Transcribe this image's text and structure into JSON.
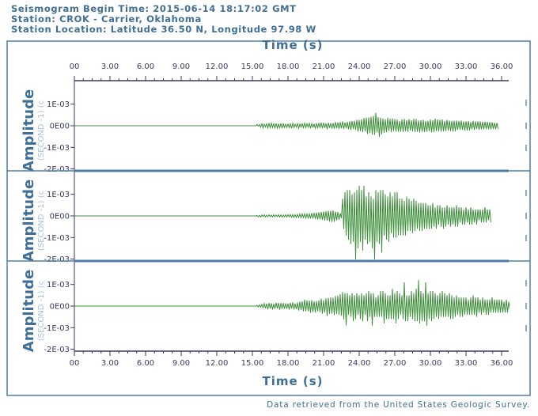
{
  "header": {
    "begin_time": "Seismogram Begin Time: 2015-06-14 18:17:02 GMT",
    "station": "Station: CROK - Carrier, Oklahoma",
    "location": "Station Location: Latitude 36.50 N, Longitude 97.98 W"
  },
  "footer": {
    "credit": "Data retrieved from the United States Geologic Survey."
  },
  "colors": {
    "trace": "#3d8f3a",
    "axis": "#3a3a66",
    "label": "#3f6f97",
    "separator": "#4f7fa8"
  },
  "chart_data": {
    "type": "line",
    "xlabel": "Time (s)",
    "ylabel": "Amplitude",
    "ylabel_units": "(SECOND -1) (c",
    "xlim": [
      0,
      36.6
    ],
    "x_ticks": [
      "00",
      "3.00",
      "6.00",
      "9.00",
      "12.00",
      "15.00",
      "18.00",
      "21.00",
      "24.00",
      "27.00",
      "30.00",
      "33.00",
      "36.00"
    ],
    "ylim": [
      0.002,
      -0.0021
    ],
    "y_ticks": [
      "1E-03",
      "0E00",
      "-1E-03",
      "-2E-03"
    ],
    "sample_interval_s": 0.1,
    "series": [
      {
        "values": [
          0,
          0,
          0,
          0,
          0,
          0,
          0,
          0,
          0,
          0,
          0,
          0,
          0,
          0,
          0,
          0,
          0,
          0,
          0,
          0,
          0,
          0,
          0,
          0,
          0,
          0,
          0,
          0,
          0,
          0,
          0,
          0,
          0,
          0,
          0,
          0,
          0,
          0,
          0,
          0,
          0,
          0,
          0,
          0,
          0,
          0,
          0,
          0,
          0,
          0,
          0,
          0,
          0,
          0,
          0,
          0,
          0,
          0,
          0,
          0,
          0,
          0,
          0,
          0,
          0,
          0,
          0,
          0,
          0,
          0,
          0,
          0,
          0,
          0,
          0,
          0,
          0,
          0,
          0,
          0,
          0,
          0,
          0,
          0,
          0,
          0,
          0,
          0,
          0,
          0,
          0,
          0,
          0,
          0,
          0,
          0,
          0,
          0,
          0,
          0,
          0,
          0,
          0,
          0,
          0,
          0,
          0,
          0,
          0,
          0,
          0,
          0,
          0,
          0,
          0,
          0,
          0,
          0,
          0,
          0,
          0,
          0,
          0,
          0,
          0,
          0,
          0,
          0,
          0,
          0,
          0,
          0,
          0,
          0,
          0,
          0,
          0,
          0,
          0,
          0,
          0,
          0,
          0,
          0,
          0,
          0,
          0,
          0,
          0,
          0,
          0,
          0,
          0,
          0,
          6e-05,
          -2e-05,
          6e-05,
          -7e-05,
          9e-05,
          -0.0001,
          7e-05,
          -5e-05,
          9e-05,
          -0.00011,
          0.0001,
          -9e-05,
          0.00012,
          -8e-05,
          9e-05,
          -0.0001,
          0.00011,
          -0.00011,
          8e-05,
          -0.0001,
          0.00011,
          -0.00012,
          9e-05,
          -8e-05,
          7e-05,
          -8e-05,
          7e-05,
          -8e-05,
          9e-05,
          -0.00012,
          0.00011,
          -8e-05,
          7e-05,
          -5e-05,
          0.0001,
          -0.00012,
          8e-05,
          -6e-05,
          9e-05,
          -9e-05,
          0.00012,
          -9e-05,
          9e-05,
          -6e-05,
          0.00011,
          -0.00012,
          9e-05,
          -7e-05,
          7e-05,
          -0.00011,
          0.0001,
          -0.0001,
          0.00011,
          -8e-05,
          0.00014,
          -0.00012,
          0.00014,
          -0.0001,
          0.00011,
          -0.00016,
          0.00014,
          -0.0001,
          0.00012,
          -0.00013,
          0.00012,
          -0.00014,
          0.00017,
          -0.00011,
          0.00015,
          -0.00015,
          0.00017,
          -0.00012,
          0.0002,
          -0.00015,
          0.00015,
          -0.00011,
          0.00018,
          -0.00016,
          0.0002,
          -0.00019,
          0.00022,
          -0.00015,
          0.00023,
          -0.00018,
          0.00028,
          -0.00027,
          0.00028,
          -0.00025,
          0.0003,
          -0.00029,
          0.00036,
          -0.00026,
          0.00038,
          -0.00038,
          0.00039,
          -0.00034,
          0.00042,
          -0.00041,
          0.00046,
          -0.00042,
          0.0006,
          -0.0003,
          0.0004,
          -0.00052,
          0.00038,
          -0.0004,
          0.00034,
          -0.00033,
          0.0003,
          -0.0003,
          0.00037,
          -0.00024,
          0.00032,
          -0.00029,
          0.00034,
          -0.00025,
          0.00031,
          -0.00027,
          0.00029,
          -0.00027,
          0.00022,
          -0.00027,
          0.00029,
          -0.00029,
          0.00032,
          -0.00025,
          0.00026,
          -0.00028,
          0.00031,
          -0.00022,
          0.00026,
          -0.00026,
          0.00032,
          -0.00029,
          0.00031,
          -0.00028,
          0.00024,
          -0.00031,
          0.00026,
          -0.00028,
          0.00027,
          -0.00029,
          0.00022,
          -0.00027,
          0.00023,
          -0.00025,
          0.00029,
          -0.0003,
          0.00026,
          -0.00029,
          0.00033,
          -0.00025,
          0.00029,
          -0.00026,
          0.00028,
          -0.00027,
          0.00029,
          -0.00026,
          0.00022,
          -0.00024,
          0.00027,
          -0.00022,
          0.00024,
          -0.00025,
          0.00022,
          -0.00027,
          0.00023,
          -0.00026,
          0.00024,
          -0.00019,
          0.00022,
          -0.00018,
          0.00024,
          -0.00019,
          0.0002,
          -0.00022,
          0.0002,
          -0.00022,
          0.00022,
          -0.00022,
          0.00017,
          -0.00016,
          0.00022,
          -0.00019,
          0.0002,
          -0.00015,
          0.0002,
          -0.00019,
          0.0002,
          -0.00016,
          0.00018,
          -0.00016,
          0.00019,
          -0.00015,
          0.00018,
          -0.00017,
          0.00017,
          -0.00017,
          0.00016,
          -0.00015,
          0.00014,
          -0.00016,
          0.00013,
          -0.00014
        ]
      },
      {
        "values": [
          0,
          0,
          0,
          0,
          0,
          0,
          0,
          0,
          0,
          0,
          0,
          0,
          0,
          0,
          0,
          0,
          0,
          0,
          0,
          0,
          0,
          0,
          0,
          0,
          0,
          0,
          0,
          0,
          0,
          0,
          0,
          0,
          0,
          0,
          0,
          0,
          0,
          0,
          0,
          0,
          0,
          0,
          0,
          0,
          0,
          0,
          0,
          0,
          0,
          0,
          0,
          0,
          0,
          0,
          0,
          0,
          0,
          0,
          0,
          0,
          0,
          0,
          0,
          0,
          0,
          0,
          0,
          0,
          0,
          0,
          0,
          0,
          0,
          0,
          0,
          0,
          0,
          0,
          0,
          0,
          0,
          0,
          0,
          0,
          0,
          0,
          0,
          0,
          0,
          0,
          0,
          0,
          0,
          0,
          0,
          0,
          0,
          0,
          0,
          0,
          0,
          0,
          0,
          0,
          0,
          0,
          0,
          0,
          0,
          0,
          0,
          0,
          0,
          0,
          0,
          0,
          0,
          0,
          0,
          0,
          0,
          0,
          0,
          0,
          0,
          0,
          0,
          0,
          0,
          0,
          0,
          0,
          0,
          0,
          0,
          0,
          0,
          0,
          0,
          0,
          0,
          0,
          0,
          0,
          0,
          0,
          0,
          0,
          0,
          0,
          0,
          0,
          0,
          0,
          2e-05,
          -4e-05,
          3e-05,
          -5e-05,
          4e-05,
          -3e-05,
          5e-05,
          -5e-05,
          4e-05,
          -4e-05,
          5e-05,
          -3e-05,
          4e-05,
          -5e-05,
          5e-05,
          -4e-05,
          4e-05,
          -4e-05,
          5e-05,
          -5e-05,
          4e-05,
          -5e-05,
          4e-05,
          -4e-05,
          5e-05,
          -5e-05,
          5e-05,
          -4e-05,
          6e-05,
          -6e-05,
          6e-05,
          -7e-05,
          6e-05,
          -7e-05,
          7e-05,
          -7e-05,
          8e-05,
          -8e-05,
          9e-05,
          -8e-05,
          0.0001,
          -0.0001,
          9e-05,
          -0.0001,
          0.0001,
          -0.00012,
          0.00013,
          -0.00012,
          0.00014,
          -0.00013,
          0.00015,
          -0.00016,
          0.00017,
          -0.00016,
          0.00018,
          -0.00018,
          0.0002,
          -0.00021,
          0.00022,
          -0.00022,
          0.00024,
          -0.00026,
          0.00024,
          -0.00028,
          0.00025,
          -0.00027,
          0.0002,
          -0.0002,
          0.00018,
          -0.00018,
          0.00012,
          -0.0001,
          0.0008,
          -0.0006,
          0.0011,
          -0.0009,
          0.0012,
          -0.0011,
          0.0012,
          -0.0013,
          0.001,
          -0.0012,
          0.0011,
          -0.0021,
          0.0012,
          -0.0015,
          0.0014,
          -0.0012,
          0.0012,
          -0.0016,
          0.0014,
          -0.0011,
          0.0009,
          -0.0013,
          0.0011,
          -0.0012,
          0.0009,
          -0.0015,
          0.0008,
          -0.0021,
          0.0012,
          -0.0012,
          0.0011,
          -0.0013,
          0.0012,
          -0.0017,
          0.0012,
          -0.0009,
          0.001,
          -0.0011,
          0.0009,
          -0.0012,
          0.0011,
          -0.0008,
          0.0009,
          -0.001,
          0.0011,
          -0.001,
          0.0011,
          -0.0009,
          0.0008,
          -0.0009,
          0.0008,
          -0.0009,
          0.0007,
          -0.0009,
          0.0009,
          -0.0007,
          0.0008,
          -0.0007,
          0.0007,
          -0.0008,
          0.0008,
          -0.0007,
          0.0007,
          -0.0006,
          0.0006,
          -0.0007,
          0.0006,
          -0.0007,
          0.0006,
          -0.0006,
          0.0006,
          -0.0006,
          0.0005,
          -0.0006,
          0.0005,
          -0.0006,
          0.0006,
          -0.0005,
          0.0004,
          -0.0006,
          0.0005,
          -0.0004,
          0.0005,
          -0.0005,
          0.0004,
          -0.0006,
          0.0004,
          -0.0005,
          0.0005,
          -0.0004,
          0.0004,
          -0.0005,
          0.0004,
          -0.0004,
          0.0004,
          -0.0005,
          0.0005,
          -0.0005,
          0.0004,
          -0.0003,
          0.0004,
          -0.0004,
          0.0003,
          -0.0004,
          0.0004,
          -0.0003,
          0.0003,
          -0.0004,
          0.0004,
          -0.0004,
          0.0003,
          -0.0003,
          0.0003,
          -0.0004,
          0.0003,
          -0.0002,
          0.0003,
          -0.0003,
          0.0003,
          -0.0003,
          0.0004,
          -0.0003,
          0.0003,
          -0.0002,
          0.0003,
          -0.0003
        ]
      },
      {
        "values": [
          0,
          0,
          0,
          0,
          0,
          0,
          0,
          0,
          0,
          0,
          0,
          0,
          0,
          0,
          0,
          0,
          0,
          0,
          0,
          0,
          0,
          0,
          0,
          0,
          0,
          0,
          0,
          0,
          0,
          0,
          0,
          0,
          0,
          0,
          0,
          0,
          0,
          0,
          0,
          0,
          0,
          0,
          0,
          0,
          0,
          0,
          0,
          0,
          0,
          0,
          0,
          0,
          0,
          0,
          0,
          0,
          0,
          0,
          0,
          0,
          0,
          0,
          0,
          0,
          0,
          0,
          0,
          0,
          0,
          0,
          0,
          0,
          0,
          0,
          0,
          0,
          0,
          0,
          0,
          0,
          0,
          0,
          0,
          0,
          0,
          0,
          0,
          0,
          0,
          0,
          0,
          0,
          0,
          0,
          0,
          0,
          0,
          0,
          0,
          0,
          0,
          0,
          0,
          0,
          0,
          0,
          0,
          0,
          0,
          0,
          0,
          0,
          0,
          0,
          0,
          0,
          0,
          0,
          0,
          0,
          0,
          0,
          0,
          0,
          0,
          0,
          0,
          0,
          0,
          0,
          0,
          0,
          0,
          0,
          0,
          0,
          0,
          0,
          0,
          0,
          0,
          0,
          0,
          0,
          0,
          0,
          0,
          0,
          0,
          0,
          0,
          0,
          0,
          0,
          3e-05,
          -4e-05,
          6e-05,
          -5e-05,
          8e-05,
          -8e-05,
          0.00012,
          -0.0001,
          0.00011,
          -0.00015,
          0.00014,
          -0.00011,
          0.00013,
          -0.00016,
          0.0001,
          -0.00012,
          0.00015,
          -0.00011,
          0.00014,
          -0.00017,
          0.00014,
          -0.00013,
          0.00014,
          -0.00012,
          0.00012,
          -0.00013,
          0.00012,
          -0.00016,
          0.00015,
          -0.00011,
          0.00017,
          -0.00015,
          0.00012,
          -0.00014,
          0.00016,
          -0.00021,
          0.0002,
          -0.00018,
          0.00022,
          -0.00024,
          0.0003,
          -0.00024,
          0.00026,
          -0.00024,
          0.00026,
          -0.00031,
          0.00028,
          -0.00028,
          0.00022,
          -0.0003,
          0.00023,
          -0.00024,
          0.00026,
          -0.00028,
          0.00034,
          -0.00036,
          0.00027,
          -0.00029,
          0.00036,
          -0.00046,
          0.00038,
          -0.00036,
          0.0004,
          -0.00035,
          0.00038,
          -0.00042,
          0.00046,
          -0.00036,
          0.00048,
          -0.0004,
          0.00055,
          -0.00045,
          0.00065,
          -0.00062,
          0.0006,
          -0.0009,
          0.0006,
          -0.0004,
          0.0005,
          -0.0005,
          0.0006,
          -0.0007,
          0.0005,
          -0.0006,
          0.0006,
          -0.0004,
          0.0005,
          -0.0006,
          0.0006,
          -0.0007,
          0.0005,
          -0.0004,
          0.0006,
          -0.0007,
          0.0007,
          -0.0005,
          0.0006,
          -0.0009,
          0.0006,
          -0.0005,
          0.0004,
          -0.0005,
          0.0005,
          -0.0005,
          0.0007,
          -0.0005,
          0.0007,
          -0.0008,
          0.0006,
          -0.0006,
          0.0005,
          -0.0006,
          0.0005,
          -0.0006,
          0.0008,
          -0.0006,
          0.0006,
          -0.0008,
          0.0007,
          -0.0006,
          0.0006,
          -0.0004,
          0.0005,
          -0.0006,
          0.0011,
          -0.0007,
          0.0005,
          -0.0007,
          0.0005,
          -0.0005,
          0.0007,
          -0.0006,
          0.0006,
          -0.0007,
          0.0008,
          -0.0007,
          0.0012,
          -0.0008,
          0.0007,
          -0.0007,
          0.0006,
          -0.0007,
          0.0011,
          -0.0009,
          0.0006,
          -0.0006,
          0.0007,
          -0.0007,
          0.0007,
          -0.0006,
          0.0006,
          -0.0005,
          0.0005,
          -0.0006,
          0.0006,
          -0.0005,
          0.0007,
          -0.0005,
          0.0006,
          -0.0005,
          0.0005,
          -0.0005,
          0.0006,
          -0.0006,
          0.0005,
          -0.0006,
          0.0004,
          -0.0005,
          0.0005,
          -0.0004,
          0.0004,
          -0.0005,
          0.0004,
          -0.0005,
          0.0004,
          -0.0004,
          0.0004,
          -0.0004,
          0.0003,
          -0.0004,
          0.0004,
          -0.0004,
          0.0005,
          -0.0004,
          0.0004,
          -0.0005,
          0.0004,
          -0.0003,
          0.0003,
          -0.0004,
          0.0004,
          -0.0003,
          0.0003,
          -0.0004,
          0.0003,
          -0.0004,
          0.0003,
          -0.0003,
          0.0004,
          -0.0003,
          0.0003,
          -0.0003,
          0.0003,
          -0.0003,
          0.0003,
          -0.0003,
          0.0003,
          -0.0003,
          0.0002,
          -0.0003,
          0.0003,
          -0.0003,
          0.0002,
          -0.0002
        ]
      }
    ]
  }
}
